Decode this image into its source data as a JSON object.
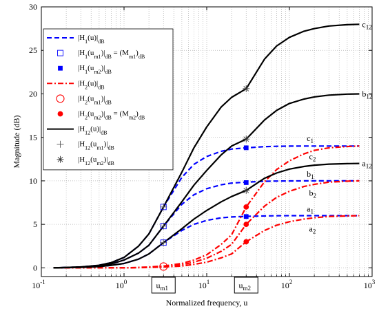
{
  "chart_data": {
    "type": "line",
    "xscale": "log",
    "xlim": [
      0.1,
      1000
    ],
    "ylim": [
      -1,
      30
    ],
    "grid": true,
    "legend_position": "top-left",
    "xlabel": "Normalized frequency, u",
    "ylabel": "Magnitude (dB)",
    "x_ticks": [
      0.1,
      1,
      10,
      100,
      1000
    ],
    "x_tick_labels": [
      {
        "base": "10",
        "exp": "-1"
      },
      {
        "base": "10",
        "exp": "0"
      },
      {
        "base": "10",
        "exp": "1"
      },
      {
        "base": "10",
        "exp": "2"
      },
      {
        "base": "10",
        "exp": "3"
      }
    ],
    "y_ticks": [
      0,
      5,
      10,
      15,
      20,
      25,
      30
    ],
    "y_tick_labels": [
      "0",
      "5",
      "10",
      "15",
      "20",
      "25",
      "30"
    ],
    "x_markers": [
      {
        "x": 3,
        "label": "u",
        "sub": "m1"
      },
      {
        "x": 30,
        "label": "u",
        "sub": "m2"
      }
    ],
    "colors": {
      "blue": "#0000ff",
      "red": "#ff0000",
      "black": "#000000"
    },
    "legend": [
      {
        "key": "H1",
        "sym": "dash-blue",
        "parts": [
          {
            "t": "|H"
          },
          {
            "s": "1"
          },
          {
            "t": "(u)|"
          },
          {
            "s": "dB"
          }
        ]
      },
      {
        "key": "H1m1",
        "sym": "square-blue",
        "parts": [
          {
            "t": "|H"
          },
          {
            "s": "1"
          },
          {
            "t": "(u"
          },
          {
            "s": "m1"
          },
          {
            "t": ")|"
          },
          {
            "s": "dB"
          },
          {
            "t": " = (M"
          },
          {
            "s": "m1"
          },
          {
            "t": ")"
          },
          {
            "s": "dB"
          }
        ]
      },
      {
        "key": "H1m2",
        "sym": "fsquare-blue",
        "parts": [
          {
            "t": "|H"
          },
          {
            "s": "1"
          },
          {
            "t": "(u"
          },
          {
            "s": "m2"
          },
          {
            "t": ")|"
          },
          {
            "s": "dB"
          }
        ]
      },
      {
        "key": "H2",
        "sym": "dashdot-red",
        "parts": [
          {
            "t": "|H"
          },
          {
            "s": "2"
          },
          {
            "t": "(u)|"
          },
          {
            "s": "dB"
          }
        ]
      },
      {
        "key": "H2m1",
        "sym": "circle-red",
        "parts": [
          {
            "t": "|H"
          },
          {
            "s": "2"
          },
          {
            "t": "(u"
          },
          {
            "s": "m1"
          },
          {
            "t": ")|"
          },
          {
            "s": "dB"
          }
        ]
      },
      {
        "key": "H2m2",
        "sym": "fcircle-red",
        "parts": [
          {
            "t": "|H"
          },
          {
            "s": "2"
          },
          {
            "t": "(u"
          },
          {
            "s": "m2"
          },
          {
            "t": ")|"
          },
          {
            "s": "dB"
          },
          {
            "t": " = (M"
          },
          {
            "s": "m2"
          },
          {
            "t": ")"
          },
          {
            "s": "dB"
          }
        ]
      },
      {
        "key": "H12",
        "sym": "solid-black",
        "parts": [
          {
            "t": "|H"
          },
          {
            "s": "12"
          },
          {
            "t": "(u)|"
          },
          {
            "s": "dB"
          }
        ]
      },
      {
        "key": "H12m1",
        "sym": "plus-black",
        "parts": [
          {
            "t": "|H"
          },
          {
            "s": "12"
          },
          {
            "t": "(u"
          },
          {
            "s": "m1"
          },
          {
            "t": ")|"
          },
          {
            "s": "dB"
          }
        ]
      },
      {
        "key": "H12m2",
        "sym": "star-black",
        "parts": [
          {
            "t": "|H"
          },
          {
            "s": "12"
          },
          {
            "t": "(u"
          },
          {
            "s": "m2"
          },
          {
            "t": ")|"
          },
          {
            "s": "dB"
          }
        ]
      }
    ],
    "x": [
      0.14,
      0.3,
      0.5,
      0.7,
      1,
      1.5,
      2,
      3,
      5,
      7,
      10,
      15,
      20,
      30,
      50,
      70,
      100,
      150,
      200,
      300,
      500,
      700
    ],
    "series": [
      {
        "group": "H12",
        "label": "c",
        "sub": "12",
        "label_x": 700,
        "label_y": 28,
        "values": [
          0.0,
          0.1,
          0.3,
          0.6,
          1.2,
          2.5,
          3.9,
          7.0,
          11.0,
          13.8,
          16.2,
          18.5,
          19.6,
          20.6,
          24.0,
          25.5,
          26.5,
          27.2,
          27.5,
          27.8,
          27.95,
          28.0
        ]
      },
      {
        "group": "H12",
        "label": "b",
        "sub": "12",
        "label_x": 700,
        "label_y": 20,
        "values": [
          0.0,
          0.1,
          0.25,
          0.45,
          0.9,
          1.7,
          2.6,
          4.8,
          7.6,
          9.5,
          11.2,
          13.0,
          14.0,
          14.8,
          17.0,
          18.1,
          18.9,
          19.4,
          19.65,
          19.85,
          19.97,
          20.0
        ]
      },
      {
        "group": "H12",
        "label": "a",
        "sub": "12",
        "label_x": 700,
        "label_y": 12,
        "values": [
          0.0,
          0.05,
          0.15,
          0.3,
          0.5,
          1.0,
          1.6,
          2.9,
          4.5,
          5.6,
          6.6,
          7.6,
          8.2,
          8.9,
          10.3,
          10.9,
          11.35,
          11.65,
          11.8,
          11.92,
          11.98,
          12.0
        ]
      },
      {
        "group": "H1",
        "label": "c",
        "sub": "1",
        "label_x": 150,
        "label_y": 14.9,
        "values": [
          0.0,
          0.1,
          0.3,
          0.6,
          1.2,
          2.5,
          3.9,
          7.0,
          10.4,
          11.9,
          12.8,
          13.4,
          13.65,
          13.8,
          13.93,
          13.97,
          13.99,
          14.0,
          14.0,
          14.0,
          14.0,
          14.0
        ]
      },
      {
        "group": "H1",
        "label": "b",
        "sub": "1",
        "label_x": 150,
        "label_y": 10.8,
        "values": [
          0.0,
          0.1,
          0.25,
          0.45,
          0.9,
          1.7,
          2.6,
          4.8,
          7.3,
          8.4,
          9.1,
          9.55,
          9.75,
          9.85,
          9.95,
          9.98,
          9.99,
          10.0,
          10.0,
          10.0,
          10.0,
          10.0
        ]
      },
      {
        "group": "H1",
        "label": "a",
        "sub": "1",
        "label_x": 150,
        "label_y": 6.8,
        "values": [
          0.0,
          0.05,
          0.15,
          0.3,
          0.5,
          1.0,
          1.6,
          2.9,
          4.3,
          5.0,
          5.45,
          5.75,
          5.85,
          5.92,
          5.97,
          5.99,
          6.0,
          6.0,
          6.0,
          6.0,
          6.0,
          6.0
        ]
      },
      {
        "group": "H2",
        "label": "c",
        "sub": "2",
        "label_x": 160,
        "label_y": 12.8,
        "values": [
          0.0,
          0.0,
          0.0,
          0.0,
          0.0,
          0.05,
          0.1,
          0.2,
          0.5,
          0.9,
          1.5,
          2.7,
          3.8,
          7.0,
          9.9,
          11.3,
          12.3,
          13.1,
          13.5,
          13.8,
          13.95,
          14.0
        ]
      },
      {
        "group": "H2",
        "label": "b",
        "sub": "2",
        "label_x": 160,
        "label_y": 8.6,
        "values": [
          0.0,
          0.0,
          0.0,
          0.0,
          0.0,
          0.03,
          0.07,
          0.15,
          0.35,
          0.65,
          1.1,
          1.9,
          2.7,
          5.0,
          7.1,
          8.1,
          8.8,
          9.35,
          9.6,
          9.85,
          9.96,
          10.0
        ]
      },
      {
        "group": "H2",
        "label": "a",
        "sub": "2",
        "label_x": 160,
        "label_y": 4.5,
        "values": [
          0.0,
          0.0,
          0.0,
          0.0,
          0.0,
          0.02,
          0.04,
          0.1,
          0.2,
          0.4,
          0.65,
          1.15,
          1.6,
          3.0,
          4.3,
          4.9,
          5.3,
          5.6,
          5.75,
          5.9,
          5.97,
          6.0
        ]
      }
    ],
    "points": [
      {
        "group": "H1m1",
        "x": 3,
        "y": 2.9
      },
      {
        "group": "H1m1",
        "x": 3,
        "y": 4.8
      },
      {
        "group": "H1m1",
        "x": 3,
        "y": 7.0
      },
      {
        "group": "H1m2",
        "x": 30,
        "y": 5.9
      },
      {
        "group": "H1m2",
        "x": 30,
        "y": 9.8
      },
      {
        "group": "H1m2",
        "x": 30,
        "y": 13.8
      },
      {
        "group": "H2m1",
        "x": 3,
        "y": 0.15
      },
      {
        "group": "H2m2",
        "x": 30,
        "y": 3.0
      },
      {
        "group": "H2m2",
        "x": 30,
        "y": 5.0
      },
      {
        "group": "H2m2",
        "x": 30,
        "y": 7.0
      },
      {
        "group": "H12m1",
        "x": 3,
        "y": 2.9
      },
      {
        "group": "H12m1",
        "x": 3,
        "y": 4.8
      },
      {
        "group": "H12m1",
        "x": 3,
        "y": 7.0
      },
      {
        "group": "H12m2",
        "x": 30,
        "y": 8.9
      },
      {
        "group": "H12m2",
        "x": 30,
        "y": 14.8
      },
      {
        "group": "H12m2",
        "x": 30,
        "y": 20.6
      }
    ]
  }
}
